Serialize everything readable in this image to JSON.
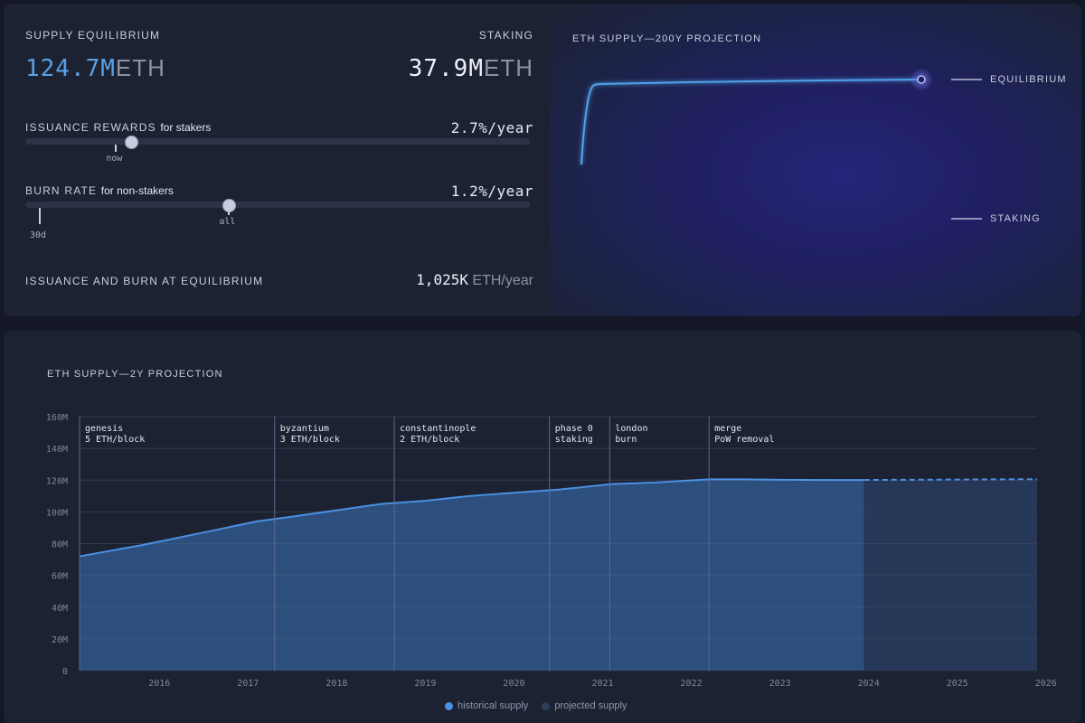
{
  "top": {
    "supply_equilibrium": {
      "label": "SUPPLY EQUILIBRIUM",
      "value": "124.7M",
      "unit": "ETH"
    },
    "staking": {
      "label": "STAKING",
      "value": "37.9M",
      "unit": "ETH"
    },
    "issuance": {
      "label": "ISSUANCE REWARDS",
      "qualifier": "for stakers",
      "value": "2.7%/year",
      "slider_fraction": 0.207,
      "marker_fraction": 0.178,
      "marker_label": "now"
    },
    "burn": {
      "label": "BURN RATE",
      "qualifier": "for non-stakers",
      "value": "1.2%/year",
      "slider_fraction": 0.402,
      "marker_left_label": "30d",
      "marker_right_label": "all"
    },
    "equilibrium_flow": {
      "label": "ISSUANCE AND BURN AT EQUILIBRIUM",
      "value": "1,025K",
      "unit": "ETH/year"
    }
  },
  "projection_200y": {
    "title": "ETH SUPPLY—200Y PROJECTION",
    "legend": [
      "EQUILIBRIUM",
      "STAKING"
    ],
    "color": "#4fa3ea"
  },
  "chart_data": {
    "type": "area",
    "title": "ETH SUPPLY—2Y PROJECTION",
    "ylim": [
      0,
      160
    ],
    "y_ticks": [
      "0",
      "20M",
      "40M",
      "60M",
      "80M",
      "100M",
      "120M",
      "140M",
      "160M"
    ],
    "x_ticks": [
      "2016",
      "2017",
      "2018",
      "2019",
      "2020",
      "2021",
      "2022",
      "2023",
      "2024",
      "2025",
      "2026"
    ],
    "series": [
      {
        "name": "historical supply",
        "color": "#4a90e2",
        "points": [
          [
            2015.6,
            72
          ],
          [
            2016.3,
            79
          ],
          [
            2017.0,
            87
          ],
          [
            2017.6,
            94
          ],
          [
            2018.0,
            97
          ],
          [
            2018.5,
            101
          ],
          [
            2019.0,
            105
          ],
          [
            2019.5,
            107
          ],
          [
            2020.0,
            110
          ],
          [
            2020.5,
            112
          ],
          [
            2021.0,
            114
          ],
          [
            2021.6,
            117.5
          ],
          [
            2022.1,
            118.5
          ],
          [
            2022.7,
            120.5
          ],
          [
            2023.1,
            120.5
          ],
          [
            2023.5,
            120.2
          ],
          [
            2024.1,
            120.1
          ],
          [
            2024.45,
            120.1
          ]
        ]
      },
      {
        "name": "projected supply",
        "color": "#26395a",
        "points": [
          [
            2024.45,
            120.1
          ],
          [
            2026.4,
            120.6
          ]
        ]
      }
    ],
    "annotations": [
      {
        "x": 2015.6,
        "line1": "genesis",
        "line2": "5 ETH/block"
      },
      {
        "x": 2017.8,
        "line1": "byzantium",
        "line2": "3 ETH/block"
      },
      {
        "x": 2019.15,
        "line1": "constantinople",
        "line2": "2 ETH/block"
      },
      {
        "x": 2020.9,
        "line1": "phase 0",
        "line2": "staking"
      },
      {
        "x": 2021.58,
        "line1": "london",
        "line2": "burn"
      },
      {
        "x": 2022.7,
        "line1": "merge",
        "line2": "PoW removal"
      }
    ],
    "x_range": [
      2015.6,
      2026.4
    ],
    "grid": true,
    "legend_position": "bottom-center"
  }
}
